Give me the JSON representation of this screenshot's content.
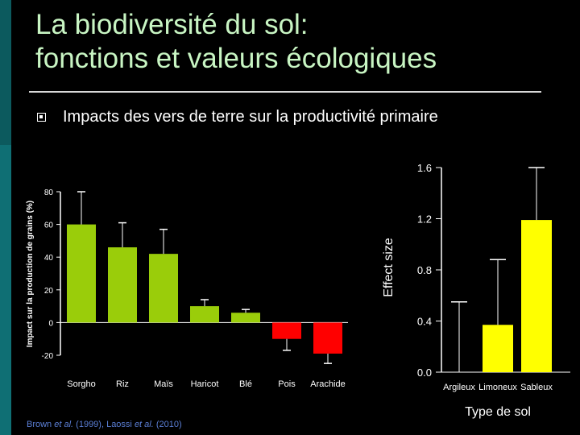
{
  "slide": {
    "title_line1": "La biodiversité du sol:",
    "title_line2": "fonctions et valeurs écologiques",
    "bullet": "Impacts des vers de terre sur la productivité primaire",
    "citation": {
      "authors1": "Brown ",
      "etal1": "et al.",
      "year1": " (1999), Laossi ",
      "etal2": "et al.",
      "year2": " (2010)"
    }
  },
  "colors": {
    "positive_bar": "#9acd0a",
    "negative_bar": "#ff0000",
    "effect_bar": "#ffff00",
    "axis": "#ffffff",
    "title": "#c8f5c3",
    "citation": "#5b7fd6"
  },
  "chart_data": [
    {
      "type": "bar",
      "ylabel": "Impact sur la production de grains (%)",
      "xlabel": "",
      "ylim": [
        -20,
        80
      ],
      "yticks": [
        "-20",
        "0",
        "20",
        "40",
        "60",
        "80"
      ],
      "categories": [
        "Sorgho",
        "Riz",
        "Maïs",
        "Haricot",
        "Blé",
        "Pois",
        "Arachide"
      ],
      "values": [
        60,
        46,
        42,
        10,
        6,
        -10,
        -19
      ],
      "error_bars": [
        80,
        61,
        57,
        14,
        8,
        -17,
        -25
      ]
    },
    {
      "type": "bar",
      "ylabel": "Effect size",
      "xlabel": "Type de sol",
      "ylim": [
        0.0,
        1.6
      ],
      "yticks": [
        "0.0",
        "0.4",
        "0.8",
        "1.2",
        "1.6"
      ],
      "categories": [
        "Argileux",
        "Limoneux",
        "Sableux"
      ],
      "values": [
        0.0,
        0.37,
        1.19
      ],
      "error_bars": [
        0.55,
        0.88,
        1.6
      ]
    }
  ]
}
